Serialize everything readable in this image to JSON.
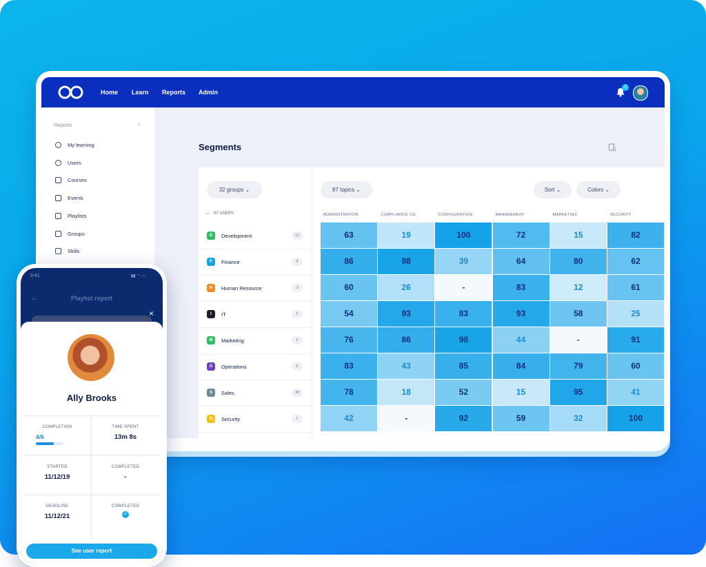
{
  "nav": {
    "links": [
      "Home",
      "Learn",
      "Reports",
      "Admin"
    ],
    "notification_count": "2"
  },
  "sidebar": {
    "title": "Reports",
    "items": [
      "My learning",
      "Users",
      "Courses",
      "Events",
      "Playlists",
      "Groups",
      "Skills"
    ]
  },
  "page": {
    "title": "Segments",
    "filters": {
      "groups": "32 groups",
      "topics": "87 topics",
      "sort": "Sort",
      "colors": "Colors"
    },
    "users_label": "97 USERS",
    "columns": [
      "ADMINISTRATION",
      "COMPLIANCE 101",
      "CONFIGURATION",
      "MANAGEMENT",
      "MARKETING",
      "SECURITY"
    ],
    "rows": [
      {
        "initial": "D",
        "name": "Development",
        "count": 12,
        "color": "#2ebd5f",
        "values": [
          63,
          19,
          100,
          72,
          15,
          82
        ]
      },
      {
        "initial": "F",
        "name": "Finance",
        "count": 4,
        "color": "#1aa3e0",
        "values": [
          86,
          98,
          39,
          64,
          80,
          62
        ]
      },
      {
        "initial": "H",
        "name": "Human Resource",
        "count": 3,
        "color": "#f28a1c",
        "values": [
          60,
          26,
          "-",
          83,
          12,
          61
        ]
      },
      {
        "initial": "I",
        "name": "IT",
        "count": 2,
        "color": "#1c1c2a",
        "values": [
          54,
          93,
          83,
          93,
          58,
          25
        ]
      },
      {
        "initial": "M",
        "name": "Marketing",
        "count": 5,
        "color": "#2ebd5f",
        "values": [
          76,
          86,
          98,
          44,
          "-",
          91
        ]
      },
      {
        "initial": "O",
        "name": "Operations",
        "count": 5,
        "color": "#6b3fc4",
        "values": [
          83,
          43,
          85,
          84,
          79,
          60
        ]
      },
      {
        "initial": "S",
        "name": "Sales",
        "count": 38,
        "color": "#6b8a96",
        "values": [
          78,
          18,
          52,
          15,
          95,
          41
        ]
      },
      {
        "initial": "S",
        "name": "Security",
        "count": 1,
        "color": "#f2c21c",
        "values": [
          42,
          "-",
          92,
          59,
          32,
          100
        ]
      }
    ]
  },
  "phone": {
    "time": "9:41",
    "header": "Playlist report",
    "user_name": "Ally Brooks",
    "stats": [
      {
        "label": "COMPLETION",
        "value": "4/6"
      },
      {
        "label": "TIME SPENT",
        "value": "13m 8s"
      },
      {
        "label": "STARTED",
        "value": "11/12/19"
      },
      {
        "label": "COMPLETED",
        "value": "-"
      },
      {
        "label": "DEADLINE",
        "value": "11/12/21"
      },
      {
        "label": "COMPLETED",
        "check": true
      }
    ],
    "button": "See user report"
  }
}
